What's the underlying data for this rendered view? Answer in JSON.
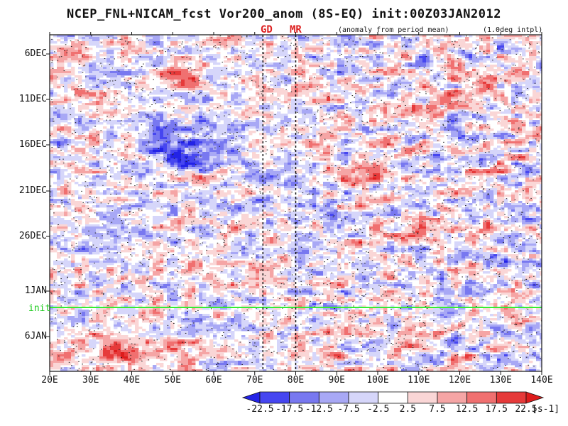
{
  "title": "NCEP_FNL+NICAM_fcst Vor200_anom (8S-EQ) init:00Z03JAN2012",
  "markers": [
    "GD",
    "MR"
  ],
  "notes": {
    "anomaly": "(anomaly from period mean)",
    "interp": "(1.0deg intpl)"
  },
  "init_label": "init",
  "chart_data": {
    "type": "heatmap",
    "title": "NCEP_FNL+NICAM_fcst Vor200_anom (8S-EQ) init:00Z03JAN2012",
    "xlabel": "",
    "ylabel": "",
    "x_ticks": [
      "20E",
      "30E",
      "40E",
      "50E",
      "60E",
      "70E",
      "80E",
      "90E",
      "100E",
      "110E",
      "120E",
      "130E",
      "140E"
    ],
    "x_range": [
      20,
      140
    ],
    "y_ticks": [
      "6DEC",
      "11DEC",
      "16DEC",
      "21DEC",
      "26DEC",
      "1JAN",
      "6JAN"
    ],
    "y_axis_direction": "time increases downward",
    "marker_longitudes": [
      72,
      80
    ],
    "init_date": "3JAN2012",
    "colorbar": {
      "levels": [
        "-22.5",
        "-17.5",
        "-12.5",
        "-7.5",
        "-2.5",
        "2.5",
        "7.5",
        "12.5",
        "17.5",
        "22.5"
      ],
      "colors": [
        "#2323e6",
        "#4646f0",
        "#7878f0",
        "#a8a8f5",
        "#d6d6fa",
        "#ffffff",
        "#fad6d6",
        "#f5a5a5",
        "#f07070",
        "#e63a3a",
        "#dd1c1c"
      ],
      "unit": "[s-1]"
    }
  }
}
